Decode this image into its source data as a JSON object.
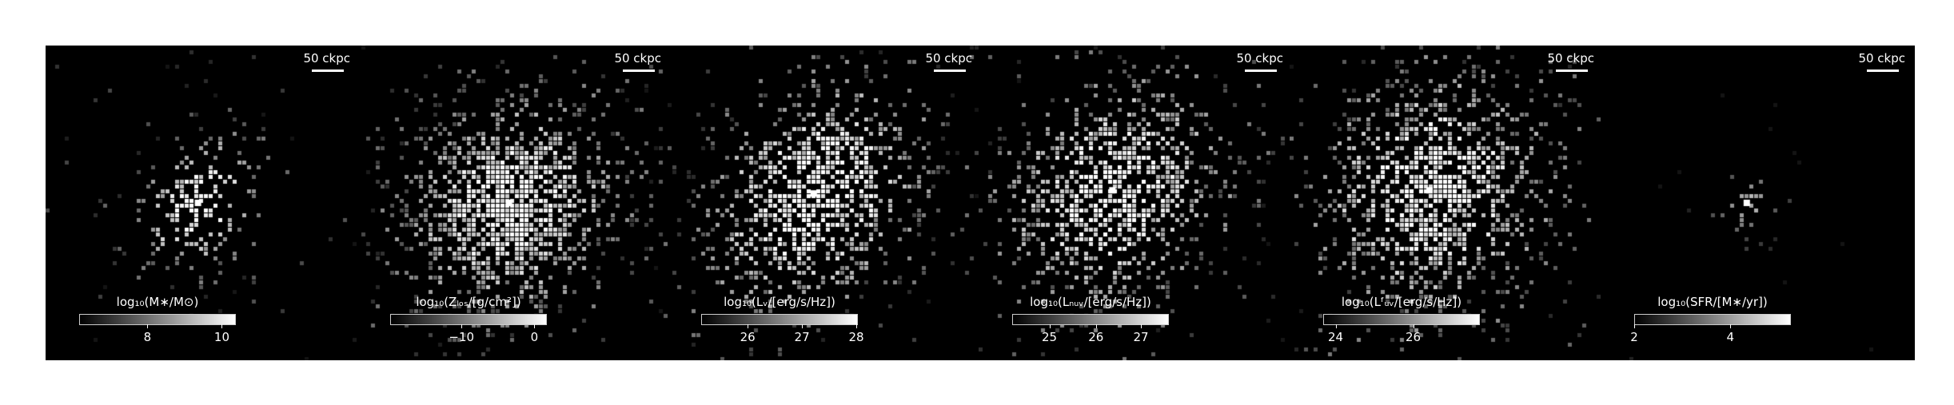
{
  "figure": {
    "scale_bar_label": "50 ckpc",
    "panels": [
      {
        "id": "stellar-mass",
        "colorbar_label": "log₁₀(M∗/M⊙)",
        "ticks": [
          {
            "label": "8",
            "frac": 0.44
          },
          {
            "label": "10",
            "frac": 0.92
          }
        ]
      },
      {
        "id": "metallicity",
        "colorbar_label": "log₁₀(Zₗₒₛ/[g/cm²])",
        "ticks": [
          {
            "label": "−10",
            "frac": 0.46
          },
          {
            "label": "0",
            "frac": 0.93
          }
        ]
      },
      {
        "id": "v-band",
        "colorbar_label": "log₁₀(Lᵥ/[erg/s/Hz])",
        "ticks": [
          {
            "label": "26",
            "frac": 0.3
          },
          {
            "label": "27",
            "frac": 0.65
          },
          {
            "label": "28",
            "frac": 1.0
          }
        ]
      },
      {
        "id": "nuv",
        "colorbar_label": "log₁₀(Lₙᵤᵥ/[erg/s/Hz])",
        "ticks": [
          {
            "label": "25",
            "frac": 0.24
          },
          {
            "label": "26",
            "frac": 0.54
          },
          {
            "label": "27",
            "frac": 0.83
          }
        ]
      },
      {
        "id": "fuv",
        "colorbar_label": "log₁₀(Lᶠᵤᵥ/[erg/s/Hz])",
        "ticks": [
          {
            "label": "24",
            "frac": 0.08
          },
          {
            "label": "26",
            "frac": 0.58
          }
        ]
      },
      {
        "id": "sfr",
        "colorbar_label": "log₁₀(SFR/[M∗/yr])",
        "ticks": [
          {
            "label": "2",
            "frac": 0.0
          },
          {
            "label": "4",
            "frac": 0.62
          }
        ]
      }
    ]
  }
}
